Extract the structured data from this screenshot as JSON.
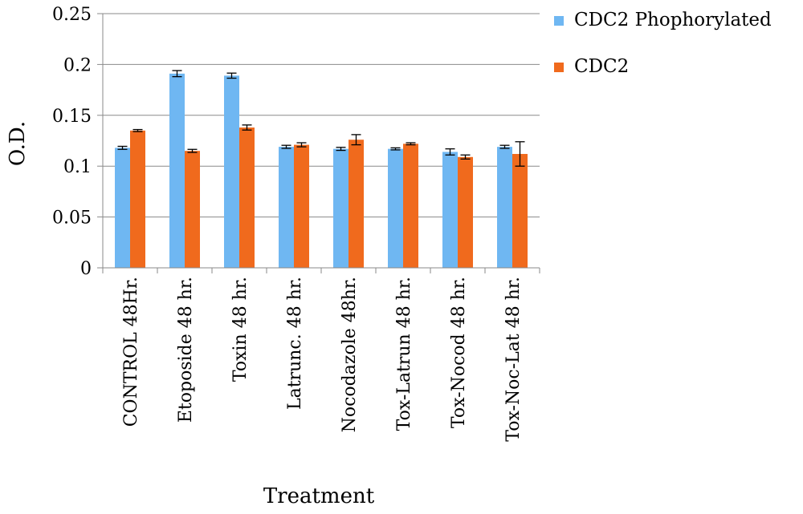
{
  "chart_data": {
    "type": "bar",
    "xlabel": "Treatment",
    "ylabel": "O.D.",
    "ylim": [
      0,
      0.25
    ],
    "yticks": [
      "0",
      "0.05",
      "0.1",
      "0.15",
      "0.2",
      "0.25"
    ],
    "grid": true,
    "legend_position": "right",
    "categories": [
      "CONTROL 48Hr.",
      "Etoposide 48 hr.",
      "Toxin 48 hr.",
      "Latrunc. 48 hr.",
      "Nocodazole 48hr.",
      "Tox-Latrun 48 hr.",
      "Tox-Nocod 48 hr.",
      "Tox-Noc-Lat 48 hr."
    ],
    "series": [
      {
        "name": "CDC2 Phophorylated",
        "color": "#6fb7f2",
        "values": [
          0.118,
          0.191,
          0.189,
          0.119,
          0.117,
          0.117,
          0.114,
          0.119
        ],
        "errors": [
          0.0015,
          0.003,
          0.0025,
          0.0015,
          0.0015,
          0.001,
          0.003,
          0.0015
        ]
      },
      {
        "name": "CDC2",
        "color": "#f06a1d",
        "values": [
          0.135,
          0.115,
          0.138,
          0.121,
          0.126,
          0.122,
          0.109,
          0.112
        ],
        "errors": [
          0.001,
          0.0015,
          0.0025,
          0.002,
          0.005,
          0.001,
          0.002,
          0.012
        ]
      }
    ]
  }
}
